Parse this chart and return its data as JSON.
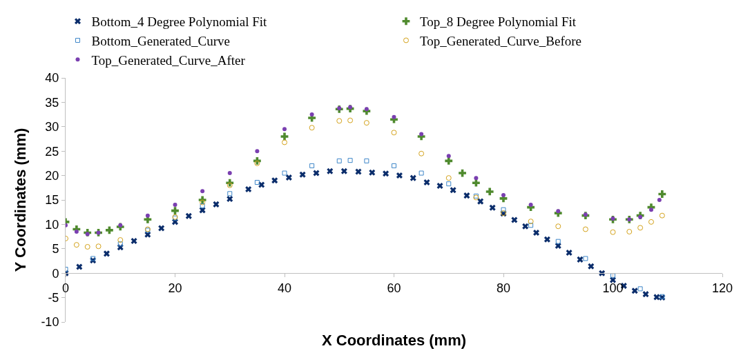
{
  "chart_data": {
    "type": "scatter",
    "xlabel": "X Coordinates (mm)",
    "ylabel": "Y Coordinates (mm)",
    "xlim": [
      0,
      120
    ],
    "xticks": [
      0,
      20,
      40,
      60,
      80,
      100,
      120
    ],
    "ylim": [
      -10,
      40
    ],
    "yticks": [
      -10,
      -5,
      0,
      5,
      10,
      15,
      20,
      25,
      30,
      35,
      40
    ],
    "legend": "top",
    "series": [
      {
        "name": "Bottom_4 Degree Polynomial Fit",
        "color": "#0b2d6b",
        "marker": "x",
        "x": [
          0,
          2.5,
          5,
          7.5,
          10,
          12.5,
          15,
          17.5,
          20,
          22.5,
          25,
          27.5,
          30,
          33.4,
          35.8,
          38.2,
          40.8,
          43.3,
          45.8,
          48.3,
          50.9,
          53.5,
          56.0,
          58.5,
          61.0,
          63.5,
          66.0,
          68.4,
          70.8,
          73.3,
          75.8,
          78,
          80,
          82,
          84,
          86,
          88,
          90,
          92,
          94,
          96,
          98,
          100,
          102,
          104,
          106,
          108,
          109
        ],
        "values": [
          0,
          1.3,
          2.6,
          4,
          5.3,
          6.6,
          7.9,
          9.2,
          10.5,
          11.7,
          12.9,
          14.1,
          15.2,
          17.2,
          18.1,
          19.0,
          19.6,
          20.2,
          20.5,
          20.9,
          20.9,
          20.8,
          20.6,
          20.4,
          20.0,
          19.5,
          18.6,
          17.9,
          17.0,
          15.9,
          14.7,
          13.4,
          12.2,
          10.9,
          9.6,
          8.3,
          6.9,
          5.6,
          4.2,
          2.8,
          1.4,
          0,
          -1.4,
          -2.6,
          -3.6,
          -4.3,
          -4.9,
          -5.0
        ]
      },
      {
        "name": "Top_8 Degree Polynomial Fit",
        "color": "#4f8a2e",
        "marker": "cross",
        "x": [
          0,
          2,
          4,
          6,
          8,
          10,
          15,
          20,
          25,
          30,
          35,
          40,
          45,
          50,
          52,
          55,
          60,
          65,
          70,
          72.5,
          75,
          77.5,
          80,
          85,
          90,
          95,
          100,
          103,
          105,
          107,
          109
        ],
        "values": [
          10.5,
          9,
          8.3,
          8.3,
          8.8,
          9.5,
          11,
          12.8,
          15,
          18.5,
          23,
          28,
          31.8,
          33.6,
          33.7,
          33.2,
          31.5,
          28,
          23,
          20.5,
          18.5,
          16.7,
          15.3,
          13.5,
          12.3,
          11.8,
          11,
          11,
          11.8,
          13.5,
          16.2
        ]
      },
      {
        "name": "Bottom_Generated_Curve",
        "color": "#3e86c8",
        "marker": "square-open",
        "x": [
          0,
          5,
          10,
          15,
          20,
          25,
          30,
          35,
          40,
          45,
          50,
          52,
          55,
          60,
          65,
          70,
          75,
          80,
          85,
          90,
          95,
          100,
          105,
          109
        ],
        "values": [
          0.8,
          3,
          6,
          8.8,
          11.3,
          13.8,
          16.3,
          18.6,
          20.5,
          22,
          23,
          23.1,
          23,
          22,
          20.5,
          18.3,
          15.8,
          13,
          9.8,
          6.5,
          3,
          -0.5,
          -3.2,
          -4.8
        ]
      },
      {
        "name": "Top_Generated_Curve_Before",
        "color": "#d4a21a",
        "marker": "circle-open",
        "x": [
          0,
          2,
          4,
          6,
          10,
          15,
          20,
          25,
          30,
          35,
          40,
          45,
          50,
          52,
          55,
          60,
          65,
          70,
          75,
          80,
          85,
          90,
          95,
          100,
          103,
          105,
          107,
          109
        ],
        "values": [
          7.1,
          5.8,
          5.4,
          5.5,
          6.8,
          9,
          11.5,
          14.5,
          18,
          22.5,
          26.8,
          29.8,
          31.2,
          31.3,
          30.8,
          28.8,
          24.5,
          19.5,
          15.5,
          12.3,
          10.6,
          9.6,
          9,
          8.4,
          8.5,
          9.3,
          10.5,
          11.8
        ]
      },
      {
        "name": "Top_Generated_Curve_After",
        "color": "#7a3fb0",
        "marker": "circle",
        "x": [
          0,
          2,
          4,
          6,
          10,
          15,
          20,
          25,
          30,
          35,
          40,
          45,
          50,
          52,
          55,
          60,
          65,
          70,
          75,
          80,
          85,
          90,
          95,
          100,
          103,
          105,
          107,
          108.5
        ],
        "values": [
          9.8,
          8.5,
          8,
          8.3,
          9.8,
          11.8,
          14,
          16.8,
          20.5,
          25,
          29.5,
          32.5,
          33.8,
          34,
          33.6,
          32,
          28.5,
          24,
          19.5,
          16,
          14,
          12.7,
          12,
          11.2,
          11,
          11.5,
          13,
          15
        ]
      }
    ]
  }
}
